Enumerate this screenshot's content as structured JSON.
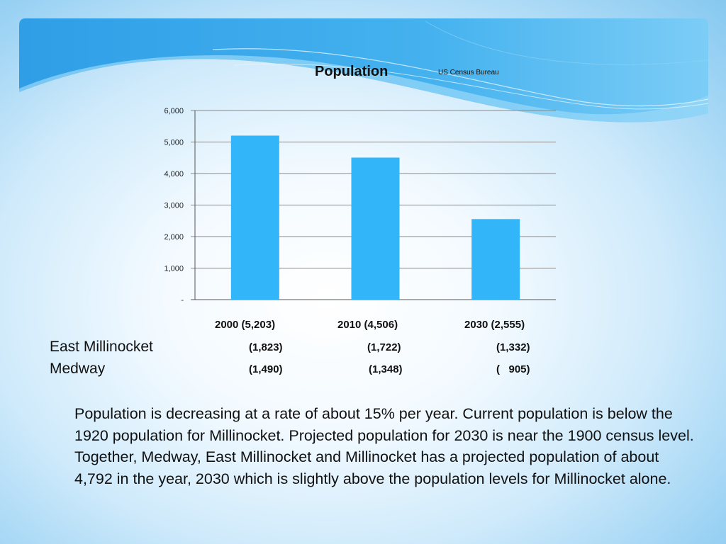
{
  "slide": {
    "title": "Population",
    "source": "US Census Bureau"
  },
  "chart_data": {
    "type": "bar",
    "categories": [
      "2000 (5,203)",
      "2010 (4,506)",
      "2030 (2,555)"
    ],
    "values": [
      5203,
      4506,
      2555
    ],
    "ylim": [
      0,
      6000
    ],
    "yticks": [
      {
        "value": 0,
        "label": "-"
      },
      {
        "value": 1000,
        "label": "1,000"
      },
      {
        "value": 2000,
        "label": "2,000"
      },
      {
        "value": 3000,
        "label": "3,000"
      },
      {
        "value": 4000,
        "label": "4,000"
      },
      {
        "value": 5000,
        "label": "5,000"
      },
      {
        "value": 6000,
        "label": "6,000"
      }
    ],
    "grid": true,
    "bar_color": "#33b5f9"
  },
  "table": {
    "rows": [
      {
        "name": "East Millinocket",
        "values": [
          "(1,823)",
          "(1,722)",
          "(1,332)"
        ]
      },
      {
        "name": "Medway",
        "values": [
          "(1,490)",
          "(1,348)",
          "(   905)"
        ]
      }
    ]
  },
  "paragraph": "Population is decreasing at a rate of about 15% per year.  Current population is below the 1920 population for Millinocket.  Projected population for 2030 is near the 1900 census level.  Together, Medway, East Millinocket and Millinocket has a projected population of about 4,792 in the year, 2030 which is slightly above the population levels for Millinocket alone."
}
